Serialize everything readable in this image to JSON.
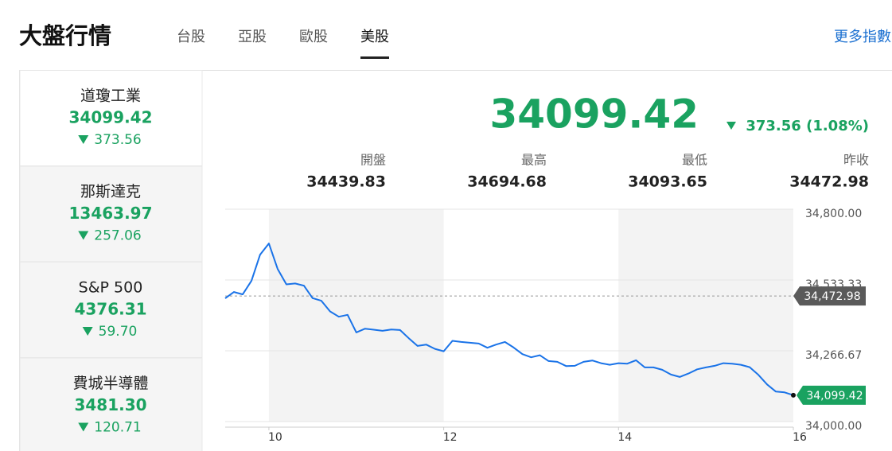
{
  "header": {
    "title": "大盤行情",
    "tabs": [
      "台股",
      "亞股",
      "歐股",
      "美股"
    ],
    "active_tab": 3,
    "more_link": "更多指數"
  },
  "indices": [
    {
      "name": "道瓊工業",
      "value": "34099.42",
      "change": "373.56"
    },
    {
      "name": "那斯達克",
      "value": "13463.97",
      "change": "257.06"
    },
    {
      "name": "S&P 500",
      "value": "4376.31",
      "change": "59.70"
    },
    {
      "name": "費城半導體",
      "value": "3481.30",
      "change": "120.71"
    }
  ],
  "active_index": 0,
  "quote": {
    "value": "34099.42",
    "change": "373.56 (1.08%)",
    "stats": [
      {
        "label": "開盤",
        "value": "34439.83"
      },
      {
        "label": "最高",
        "value": "34694.68"
      },
      {
        "label": "最低",
        "value": "34093.65"
      },
      {
        "label": "昨收",
        "value": "34472.98"
      }
    ]
  },
  "chart_data": {
    "type": "line",
    "color": "#1a73e8",
    "x": [
      9.5,
      9.6,
      9.7,
      9.8,
      9.9,
      10.0,
      10.1,
      10.2,
      10.3,
      10.4,
      10.5,
      10.6,
      10.7,
      10.8,
      10.9,
      11.0,
      11.1,
      11.2,
      11.3,
      11.4,
      11.5,
      11.6,
      11.7,
      11.8,
      11.9,
      12.0,
      12.1,
      12.2,
      12.3,
      12.4,
      12.5,
      12.6,
      12.7,
      12.8,
      12.9,
      13.0,
      13.1,
      13.2,
      13.3,
      13.4,
      13.5,
      13.6,
      13.7,
      13.8,
      13.9,
      14.0,
      14.1,
      14.2,
      14.3,
      14.4,
      14.5,
      14.6,
      14.7,
      14.8,
      14.9,
      15.0,
      15.1,
      15.2,
      15.3,
      15.4,
      15.5,
      15.6,
      15.7,
      15.8,
      15.9,
      16.0
    ],
    "values": [
      34464,
      34488,
      34479,
      34530,
      34629,
      34671,
      34575,
      34517,
      34520,
      34512,
      34465,
      34455,
      34415,
      34395,
      34402,
      34336,
      34350,
      34346,
      34342,
      34347,
      34345,
      34314,
      34285,
      34290,
      34274,
      34265,
      34304,
      34300,
      34297,
      34294,
      34278,
      34290,
      34300,
      34279,
      34254,
      34242,
      34250,
      34228,
      34225,
      34209,
      34210,
      34225,
      34230,
      34220,
      34214,
      34220,
      34218,
      34231,
      34204,
      34204,
      34195,
      34177,
      34168,
      34181,
      34197,
      34204,
      34210,
      34220,
      34218,
      34214,
      34205,
      34176,
      34140,
      34113,
      34110,
      34099.42
    ],
    "xlim": [
      9.5,
      16
    ],
    "xticks": [
      10,
      12,
      14,
      16
    ],
    "ylim": [
      34000,
      34800
    ],
    "yticks": [
      {
        "value": 34000,
        "label": "34,000.00"
      },
      {
        "value": 34266.67,
        "label": "34,266.67"
      },
      {
        "value": 34533.33,
        "label": "34,533.33"
      },
      {
        "value": 34800,
        "label": "34,800.00"
      }
    ],
    "reference": {
      "value": 34472.98,
      "label": "34,472.98"
    },
    "last_label": "34,099.42",
    "grid": true
  }
}
